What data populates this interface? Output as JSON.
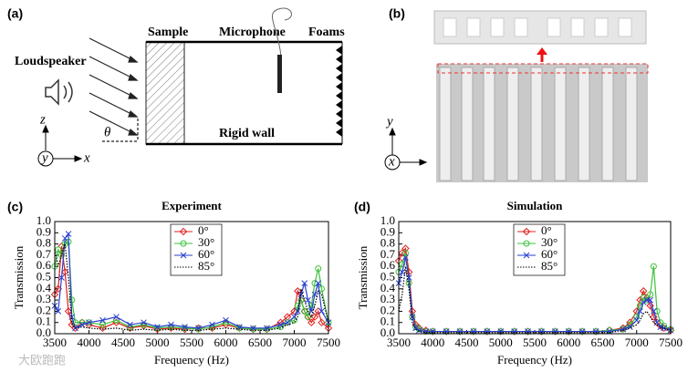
{
  "panels": {
    "a": "(a)",
    "b": "(b)",
    "c": "(c)",
    "d": "(d)"
  },
  "diagram": {
    "loudspeaker": "Loudspeaker",
    "sample": "Sample",
    "microphone": "Microphone",
    "foams": "Foams",
    "rigid_wall": "Rigid wall",
    "axis_z": "z",
    "axis_y": "y",
    "axis_x": "x",
    "theta": "θ"
  },
  "structure": {
    "axis_y": "y",
    "axis_x": "x"
  },
  "watermark": "大欧跑跑",
  "chart_data": [
    {
      "type": "line",
      "title": "Experiment",
      "xlabel": "Frequency (Hz)",
      "ylabel": "Transmission",
      "legend": "upper center",
      "x": [
        3500,
        3550,
        3600,
        3650,
        3700,
        3750,
        3800,
        3900,
        4000,
        4200,
        4400,
        4600,
        4800,
        5000,
        5200,
        5400,
        5600,
        5800,
        6000,
        6200,
        6400,
        6600,
        6800,
        6900,
        7000,
        7050,
        7100,
        7150,
        7200,
        7250,
        7300,
        7350,
        7400,
        7500
      ],
      "xlim": [
        3500,
        7500
      ],
      "xticks": [
        3500,
        4000,
        4500,
        5000,
        5500,
        6000,
        6500,
        7000,
        7500
      ],
      "ylim": [
        0,
        1
      ],
      "yticks": [
        {
          "value": 0,
          "label": "0.0"
        },
        0.1,
        0.2,
        0.3,
        0.4,
        0.5,
        0.6,
        0.7,
        0.8,
        0.9,
        {
          "value": 1,
          "label": "1.0"
        }
      ],
      "series": [
        {
          "name": "0°",
          "color": "#e0201b",
          "marker": "diamond",
          "linestyle": "solid",
          "values": [
            0.35,
            0.4,
            0.78,
            0.55,
            0.2,
            0.08,
            0.05,
            0.1,
            0.08,
            0.05,
            0.1,
            0.05,
            0.07,
            0.04,
            0.05,
            0.04,
            0.05,
            0.05,
            0.08,
            0.05,
            0.04,
            0.04,
            0.1,
            0.15,
            0.2,
            0.38,
            0.3,
            0.2,
            0.15,
            0.1,
            0.15,
            0.2,
            0.1,
            0.05
          ]
        },
        {
          "name": "30°",
          "color": "#3cc23c",
          "marker": "circle",
          "linestyle": "solid",
          "values": [
            0.6,
            0.75,
            0.7,
            0.8,
            0.82,
            0.3,
            0.1,
            0.1,
            0.1,
            0.08,
            0.12,
            0.06,
            0.08,
            0.05,
            0.06,
            0.05,
            0.04,
            0.06,
            0.1,
            0.05,
            0.04,
            0.04,
            0.06,
            0.1,
            0.12,
            0.25,
            0.3,
            0.2,
            0.15,
            0.25,
            0.45,
            0.58,
            0.4,
            0.1
          ]
        },
        {
          "name": "60°",
          "color": "#2a3fd0",
          "marker": "x",
          "linestyle": "solid",
          "values": [
            0.25,
            0.2,
            0.5,
            0.85,
            0.89,
            0.15,
            0.05,
            0.08,
            0.1,
            0.12,
            0.15,
            0.08,
            0.1,
            0.06,
            0.08,
            0.06,
            0.05,
            0.08,
            0.12,
            0.06,
            0.05,
            0.05,
            0.08,
            0.1,
            0.15,
            0.2,
            0.35,
            0.45,
            0.3,
            0.2,
            0.35,
            0.45,
            0.2,
            0.1
          ]
        },
        {
          "name": "85°",
          "color": "#000000",
          "marker": "none",
          "linestyle": "dotted",
          "values": [
            0.75,
            0.6,
            0.7,
            0.8,
            0.5,
            0.1,
            0.05,
            0.06,
            0.05,
            0.04,
            0.05,
            0.03,
            0.04,
            0.03,
            0.04,
            0.03,
            0.03,
            0.04,
            0.05,
            0.04,
            0.03,
            0.03,
            0.05,
            0.08,
            0.1,
            0.15,
            0.4,
            0.3,
            0.2,
            0.15,
            0.25,
            0.38,
            0.35,
            0.1
          ]
        }
      ]
    },
    {
      "type": "line",
      "title": "Simulation",
      "xlabel": "Frequency (Hz)",
      "ylabel": "Transmission",
      "legend": "upper center",
      "x": [
        3500,
        3550,
        3600,
        3650,
        3700,
        3750,
        3800,
        3900,
        4000,
        4200,
        4400,
        4600,
        4800,
        5000,
        5200,
        5400,
        5600,
        5800,
        6000,
        6200,
        6400,
        6600,
        6800,
        6900,
        7000,
        7050,
        7100,
        7150,
        7200,
        7250,
        7300,
        7350,
        7400,
        7500
      ],
      "xlim": [
        3500,
        7500
      ],
      "xticks": [
        3500,
        4000,
        4500,
        5000,
        5500,
        6000,
        6500,
        7000,
        7500
      ],
      "ylim": [
        0,
        1
      ],
      "yticks": [
        {
          "value": 0,
          "label": "0.0"
        },
        0.1,
        0.2,
        0.3,
        0.4,
        0.5,
        0.6,
        0.7,
        0.8,
        0.9,
        {
          "value": 1,
          "label": "1.0"
        }
      ],
      "series": [
        {
          "name": "0°",
          "color": "#e0201b",
          "marker": "diamond",
          "linestyle": "solid",
          "values": [
            0.65,
            0.72,
            0.76,
            0.55,
            0.2,
            0.08,
            0.05,
            0.03,
            0.02,
            0.02,
            0.02,
            0.02,
            0.02,
            0.02,
            0.02,
            0.02,
            0.02,
            0.02,
            0.02,
            0.02,
            0.02,
            0.03,
            0.05,
            0.1,
            0.2,
            0.3,
            0.38,
            0.32,
            0.25,
            0.15,
            0.1,
            0.07,
            0.05,
            0.03
          ]
        },
        {
          "name": "30°",
          "color": "#3cc23c",
          "marker": "circle",
          "linestyle": "solid",
          "values": [
            0.55,
            0.62,
            0.72,
            0.45,
            0.15,
            0.06,
            0.04,
            0.02,
            0.02,
            0.02,
            0.02,
            0.02,
            0.02,
            0.02,
            0.02,
            0.02,
            0.02,
            0.02,
            0.02,
            0.02,
            0.02,
            0.03,
            0.04,
            0.08,
            0.15,
            0.25,
            0.32,
            0.3,
            0.35,
            0.6,
            0.2,
            0.1,
            0.07,
            0.04
          ]
        },
        {
          "name": "60°",
          "color": "#2a3fd0",
          "marker": "x",
          "linestyle": "solid",
          "values": [
            0.45,
            0.55,
            0.68,
            0.5,
            0.15,
            0.05,
            0.03,
            0.02,
            0.02,
            0.02,
            0.02,
            0.02,
            0.02,
            0.02,
            0.02,
            0.02,
            0.02,
            0.02,
            0.02,
            0.02,
            0.02,
            0.02,
            0.04,
            0.06,
            0.12,
            0.2,
            0.28,
            0.3,
            0.3,
            0.2,
            0.1,
            0.06,
            0.05,
            0.03
          ]
        },
        {
          "name": "85°",
          "color": "#000000",
          "marker": "none",
          "linestyle": "dotted",
          "values": [
            0.2,
            0.35,
            0.6,
            0.4,
            0.1,
            0.04,
            0.02,
            0.01,
            0.01,
            0.01,
            0.01,
            0.01,
            0.01,
            0.01,
            0.01,
            0.01,
            0.01,
            0.01,
            0.01,
            0.01,
            0.01,
            0.01,
            0.03,
            0.05,
            0.08,
            0.12,
            0.18,
            0.2,
            0.15,
            0.1,
            0.08,
            0.06,
            0.05,
            0.03
          ]
        }
      ]
    }
  ]
}
